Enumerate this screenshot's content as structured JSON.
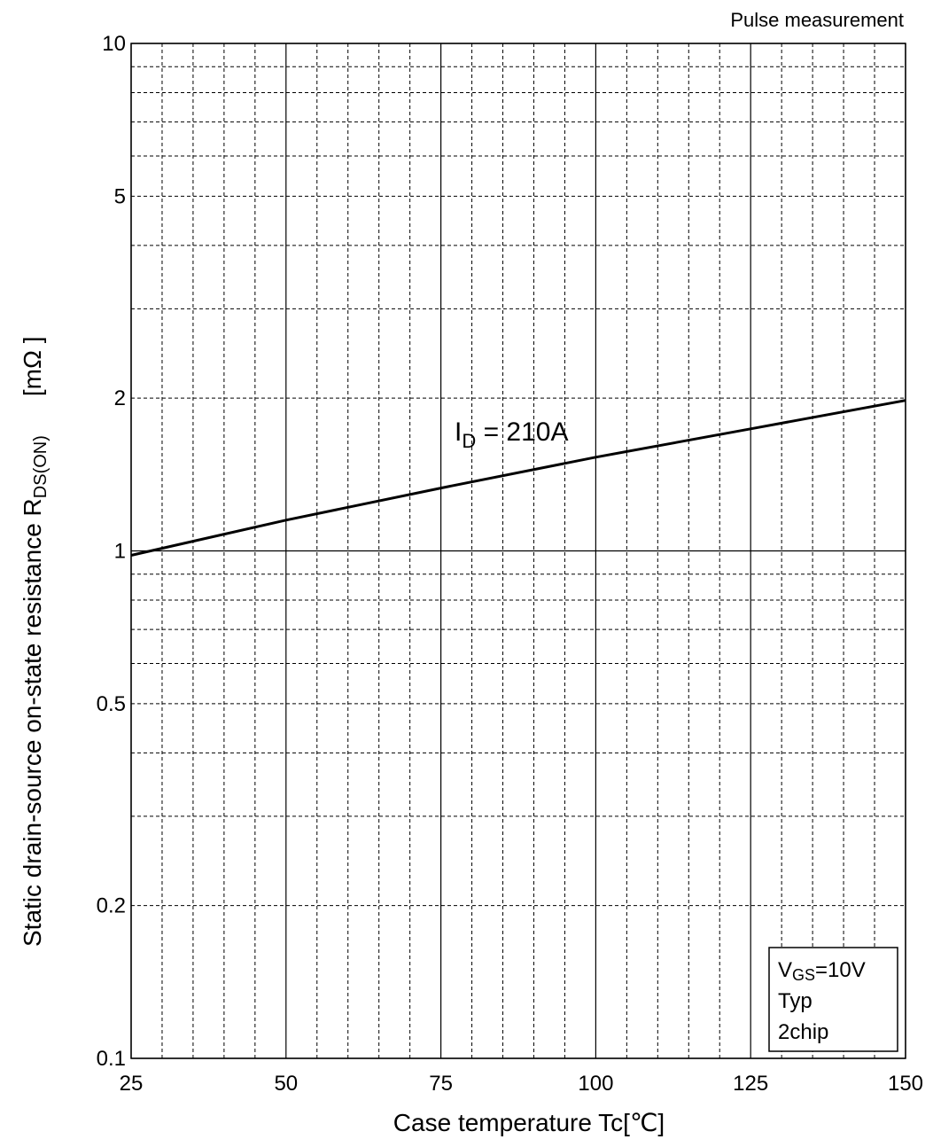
{
  "chart_data": {
    "type": "line",
    "title": "",
    "subtitle": "Pulse measurement",
    "xlabel": "Case temperature  Tc[℃]",
    "ylabel": {
      "main": "Static drain-source on-state resistance  R",
      "sub": "DS(ON)",
      "unit": "[mΩ ]"
    },
    "xlim": [
      25,
      150
    ],
    "ylim": [
      0.1,
      10
    ],
    "y_scale": "log",
    "x_ticks": [
      25,
      50,
      75,
      100,
      125,
      150
    ],
    "x_tick_labels": [
      "25",
      "50",
      "75",
      "100",
      "125",
      "150"
    ],
    "y_ticks": [
      0.1,
      0.2,
      0.5,
      1,
      2,
      5,
      10
    ],
    "y_tick_labels": [
      "0.1",
      "0.2",
      "0.5",
      "1",
      "2",
      "5",
      "10"
    ],
    "grid": true,
    "series": [
      {
        "name": "ID = 210A",
        "label_main": "I",
        "label_sub": "D",
        "label_rest": " = 210A",
        "x": [
          25,
          50,
          75,
          100,
          125,
          150
        ],
        "y": [
          0.98,
          1.15,
          1.33,
          1.53,
          1.74,
          1.98
        ]
      }
    ],
    "conditions": {
      "line1_main": "V",
      "line1_sub": "GS",
      "line1_rest": "=10V",
      "line2": "Typ",
      "line3": "2chip"
    }
  }
}
